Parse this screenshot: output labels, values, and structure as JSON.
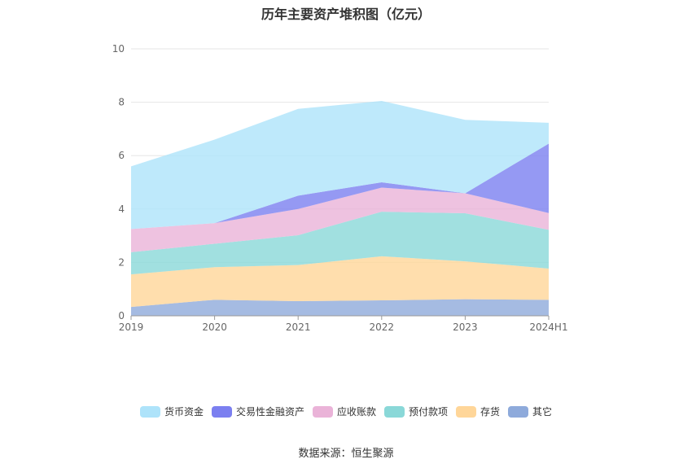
{
  "chart_data": {
    "type": "area",
    "stacked": true,
    "title": "历年主要资产堆积图（亿元）",
    "categories": [
      "2019",
      "2020",
      "2021",
      "2022",
      "2023",
      "2024H1"
    ],
    "ylim": [
      0,
      10
    ],
    "yticks": [
      "0",
      "2",
      "4",
      "6",
      "8",
      "10"
    ],
    "grid": true,
    "legend_position": "bottom",
    "series": [
      {
        "name": "其它",
        "color": "#8eaadb",
        "values": [
          0.33,
          0.6,
          0.55,
          0.58,
          0.62,
          0.6
        ]
      },
      {
        "name": "存货",
        "color": "#ffd699",
        "values": [
          1.22,
          1.22,
          1.35,
          1.65,
          1.42,
          1.17
        ]
      },
      {
        "name": "预付款项",
        "color": "#8ad8d8",
        "values": [
          0.83,
          0.88,
          1.12,
          1.67,
          1.8,
          1.45
        ]
      },
      {
        "name": "应收账款",
        "color": "#eab3d8",
        "values": [
          0.87,
          0.77,
          0.98,
          0.9,
          0.75,
          0.63
        ]
      },
      {
        "name": "交易性金融资产",
        "color": "#7b7ff0",
        "values": [
          0.0,
          0.0,
          0.5,
          0.2,
          0.0,
          2.6
        ]
      },
      {
        "name": "货币资金",
        "color": "#aee3fa",
        "values": [
          2.35,
          3.13,
          3.25,
          3.05,
          2.75,
          0.78
        ]
      }
    ]
  },
  "source": "数据来源：恒生聚源"
}
